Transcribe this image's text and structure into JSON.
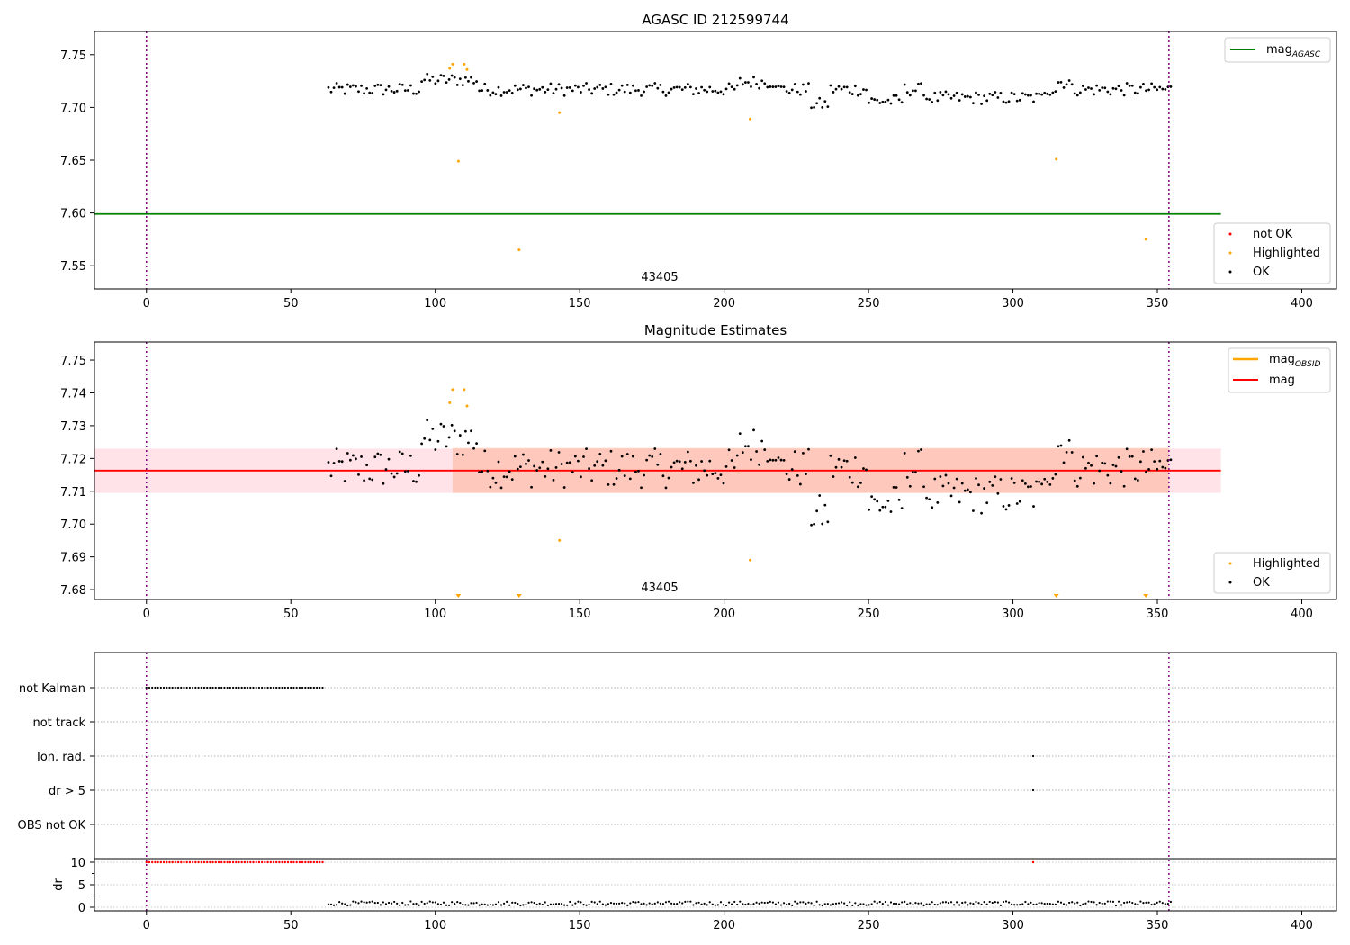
{
  "chart_data": [
    {
      "type": "scatter",
      "title": "AGASC ID 212599744",
      "annotation": "43405",
      "xlim": [
        -18,
        412
      ],
      "ylim": [
        7.528,
        7.772
      ],
      "xticks": [
        0,
        50,
        100,
        150,
        200,
        250,
        300,
        350,
        400
      ],
      "yticks": [
        7.55,
        7.6,
        7.65,
        7.7,
        7.75
      ],
      "vlines": [
        0,
        354
      ],
      "hline": {
        "name": "mag_AGASC",
        "value": 7.599,
        "x_range": [
          -18,
          372
        ],
        "color": "#008000"
      },
      "legend_lines": [
        {
          "label": "mag",
          "sub": "AGASC",
          "color": "#008000"
        }
      ],
      "legend_points": [
        {
          "label": "not OK",
          "color": "#ff0000"
        },
        {
          "label": "Highlighted",
          "color": "#ffa500"
        },
        {
          "label": "OK",
          "color": "#000000"
        }
      ],
      "highlighted": [
        [
          105,
          7.737
        ],
        [
          106,
          7.741
        ],
        [
          108,
          7.649
        ],
        [
          110,
          7.741
        ],
        [
          111,
          7.736
        ],
        [
          129,
          7.565
        ],
        [
          143,
          7.695
        ],
        [
          209,
          7.689
        ],
        [
          315,
          7.651
        ],
        [
          346,
          7.575
        ]
      ],
      "ok_description": "OK samples every ~1 unit from x=63 to x=355 around 7.70-7.73"
    },
    {
      "type": "scatter",
      "title": "Magnitude Estimates",
      "annotation": "43405",
      "xlim": [
        -18,
        412
      ],
      "ylim": [
        7.677,
        7.7555
      ],
      "xticks": [
        0,
        50,
        100,
        150,
        200,
        250,
        300,
        350,
        400
      ],
      "yticks": [
        7.68,
        7.69,
        7.7,
        7.71,
        7.72,
        7.73,
        7.74,
        7.75
      ],
      "vlines": [
        0,
        354
      ],
      "mag": 7.7163,
      "mag_band": [
        7.7095,
        7.723
      ],
      "mag_obsid_band": [
        7.7095,
        7.7232
      ],
      "mag_obsid_x_range": [
        106,
        354
      ],
      "legend_lines": [
        {
          "label": "mag",
          "sub": "OBSID",
          "color": "#ffa500"
        },
        {
          "label": "mag",
          "sub": "",
          "color": "#ff0000"
        }
      ],
      "legend_points": [
        {
          "label": "Highlighted",
          "color": "#ffa500"
        },
        {
          "label": "OK",
          "color": "#000000"
        }
      ],
      "highlighted": [
        [
          105,
          7.737
        ],
        [
          106,
          7.741
        ],
        [
          110,
          7.741
        ],
        [
          111,
          7.736
        ],
        [
          143,
          7.695
        ],
        [
          209,
          7.689
        ]
      ],
      "clipped_markers_x": [
        108,
        129,
        315,
        346
      ]
    },
    {
      "type": "scatter",
      "flags": [
        "not Kalman",
        "not track",
        "Ion. rad.",
        "dr > 5",
        "OBS not OK"
      ],
      "flag_points": {
        "not Kalman": {
          "x_range": [
            0,
            61
          ]
        },
        "Ion. rad.": {
          "x": [
            307
          ]
        },
        "dr > 5": {
          "x": [
            307
          ]
        }
      },
      "dr_ylabel": "dr",
      "dr_yticks": [
        0,
        5,
        10
      ],
      "dr_red_range": [
        0,
        61
      ],
      "dr_red_extra": [
        307
      ],
      "xticks": [
        0,
        50,
        100,
        150,
        200,
        250,
        300,
        350,
        400
      ],
      "vlines": [
        0,
        354
      ]
    }
  ]
}
